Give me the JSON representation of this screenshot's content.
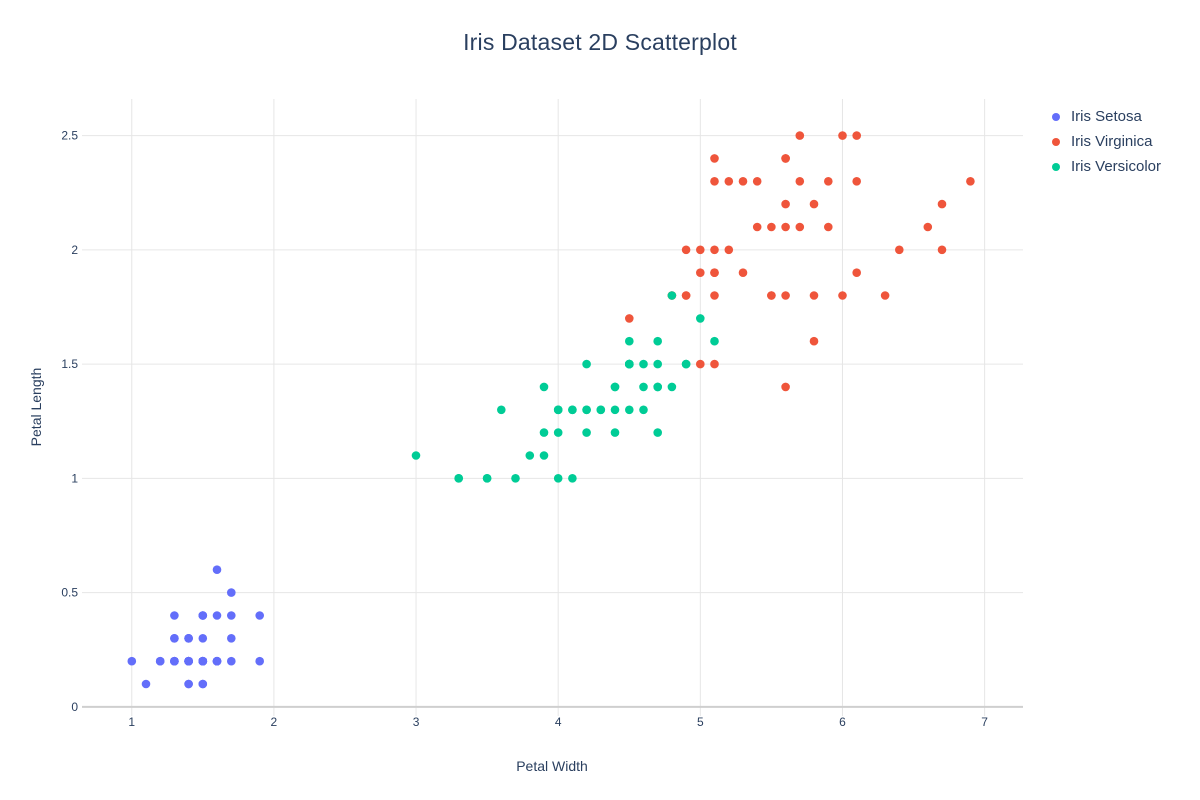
{
  "title": "Iris Dataset 2D Scatterplot",
  "colors": {
    "text": "#2a3f5f",
    "grid_line": "#e6e6e6",
    "zero_line": "#cfcfcf",
    "background": "#ffffff"
  },
  "chart_data": {
    "type": "scatter",
    "title": "Iris Dataset 2D Scatterplot",
    "xlabel": "Petal Width",
    "ylabel": "Petal Length",
    "xlim": [
      0.65,
      7.27
    ],
    "ylim": [
      -0.04,
      2.66
    ],
    "x_ticks": [
      1,
      2,
      3,
      4,
      5,
      6,
      7
    ],
    "y_ticks": [
      0,
      0.5,
      1,
      1.5,
      2,
      2.5
    ],
    "grid": true,
    "legend_position": "right",
    "marker_radius": 4.3,
    "series": [
      {
        "name": "Iris Setosa",
        "color": "#636EFA",
        "x": [
          1.4,
          1.4,
          1.3,
          1.5,
          1.4,
          1.7,
          1.4,
          1.5,
          1.4,
          1.5,
          1.5,
          1.6,
          1.4,
          1.1,
          1.2,
          1.5,
          1.3,
          1.4,
          1.7,
          1.5,
          1.7,
          1.5,
          1.0,
          1.7,
          1.9,
          1.6,
          1.6,
          1.5,
          1.4,
          1.6,
          1.6,
          1.5,
          1.5,
          1.4,
          1.5,
          1.2,
          1.3,
          1.4,
          1.3,
          1.5,
          1.3,
          1.3,
          1.3,
          1.6,
          1.9,
          1.4,
          1.6,
          1.4,
          1.5,
          1.4
        ],
        "y": [
          0.2,
          0.2,
          0.2,
          0.2,
          0.2,
          0.4,
          0.3,
          0.2,
          0.2,
          0.1,
          0.2,
          0.2,
          0.1,
          0.1,
          0.2,
          0.4,
          0.4,
          0.3,
          0.3,
          0.3,
          0.2,
          0.4,
          0.2,
          0.5,
          0.2,
          0.2,
          0.4,
          0.2,
          0.2,
          0.2,
          0.2,
          0.4,
          0.1,
          0.2,
          0.2,
          0.2,
          0.2,
          0.1,
          0.2,
          0.2,
          0.3,
          0.3,
          0.2,
          0.6,
          0.4,
          0.3,
          0.2,
          0.2,
          0.2,
          0.2
        ]
      },
      {
        "name": "Iris Virginica",
        "color": "#EF553B",
        "x": [
          6.0,
          5.1,
          5.9,
          5.6,
          5.8,
          6.6,
          4.5,
          6.3,
          5.8,
          6.1,
          5.1,
          5.3,
          5.5,
          5.0,
          5.1,
          5.3,
          5.5,
          6.7,
          6.9,
          5.0,
          5.7,
          4.9,
          6.7,
          4.9,
          5.7,
          6.0,
          4.8,
          4.9,
          5.6,
          5.8,
          6.1,
          6.4,
          5.6,
          5.1,
          5.6,
          6.1,
          5.6,
          5.5,
          4.8,
          5.4,
          5.6,
          5.1,
          5.1,
          5.9,
          5.7,
          5.2,
          5.0,
          5.2,
          5.4,
          5.1
        ],
        "y": [
          2.5,
          1.9,
          2.1,
          1.8,
          2.2,
          2.1,
          1.7,
          1.8,
          1.8,
          2.5,
          2.0,
          1.9,
          2.1,
          2.0,
          2.4,
          2.3,
          1.8,
          2.2,
          2.3,
          1.5,
          2.3,
          2.0,
          2.0,
          1.8,
          2.1,
          1.8,
          1.8,
          1.8,
          2.1,
          1.6,
          1.9,
          2.0,
          2.2,
          1.5,
          1.4,
          2.3,
          2.4,
          1.8,
          1.8,
          2.1,
          2.4,
          2.3,
          1.9,
          2.3,
          2.5,
          2.3,
          1.9,
          2.0,
          2.3,
          1.8
        ]
      },
      {
        "name": "Iris Versicolor",
        "color": "#00CC96",
        "x": [
          4.7,
          4.5,
          4.9,
          4.0,
          4.6,
          4.5,
          4.7,
          3.3,
          4.6,
          3.9,
          3.5,
          4.2,
          4.0,
          4.7,
          3.6,
          4.4,
          4.5,
          4.1,
          4.5,
          3.9,
          4.8,
          4.0,
          4.9,
          4.7,
          4.3,
          4.4,
          4.8,
          5.0,
          4.5,
          3.5,
          3.8,
          3.7,
          3.9,
          5.1,
          4.5,
          4.5,
          4.7,
          4.4,
          4.1,
          4.0,
          4.4,
          4.6,
          4.0,
          3.3,
          4.2,
          4.2,
          4.2,
          4.3,
          3.0,
          4.1
        ],
        "y": [
          1.4,
          1.5,
          1.5,
          1.3,
          1.5,
          1.3,
          1.6,
          1.0,
          1.3,
          1.4,
          1.0,
          1.5,
          1.0,
          1.4,
          1.3,
          1.4,
          1.5,
          1.0,
          1.5,
          1.1,
          1.8,
          1.3,
          1.5,
          1.2,
          1.3,
          1.4,
          1.4,
          1.7,
          1.5,
          1.0,
          1.1,
          1.0,
          1.2,
          1.6,
          1.5,
          1.6,
          1.5,
          1.3,
          1.3,
          1.3,
          1.2,
          1.4,
          1.2,
          1.0,
          1.3,
          1.2,
          1.3,
          1.3,
          1.1,
          1.3
        ]
      }
    ]
  }
}
